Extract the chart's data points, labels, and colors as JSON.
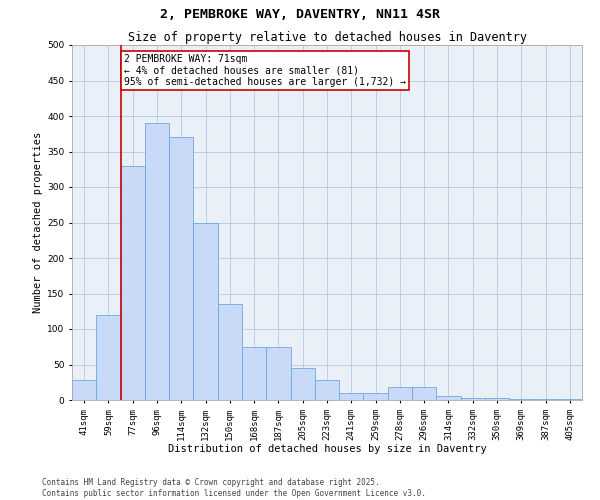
{
  "title": "2, PEMBROKE WAY, DAVENTRY, NN11 4SR",
  "subtitle": "Size of property relative to detached houses in Daventry",
  "xlabel": "Distribution of detached houses by size in Daventry",
  "ylabel": "Number of detached properties",
  "footer_line1": "Contains HM Land Registry data © Crown copyright and database right 2025.",
  "footer_line2": "Contains public sector information licensed under the Open Government Licence v3.0.",
  "annotation_line1": "2 PEMBROKE WAY: 71sqm",
  "annotation_line2": "← 4% of detached houses are smaller (81)",
  "annotation_line3": "95% of semi-detached houses are larger (1,732) →",
  "bar_color": "#c9daf8",
  "bar_edge_color": "#6fa8dc",
  "grid_color": "#b8c7e0",
  "bg_color": "#eaf0f8",
  "vline_color": "#cc0000",
  "annotation_box_edge": "#cc0000",
  "categories": [
    "41sqm",
    "59sqm",
    "77sqm",
    "96sqm",
    "114sqm",
    "132sqm",
    "150sqm",
    "168sqm",
    "187sqm",
    "205sqm",
    "223sqm",
    "241sqm",
    "259sqm",
    "278sqm",
    "296sqm",
    "314sqm",
    "332sqm",
    "350sqm",
    "369sqm",
    "387sqm",
    "405sqm"
  ],
  "values": [
    28,
    120,
    330,
    390,
    370,
    250,
    135,
    75,
    75,
    45,
    28,
    10,
    10,
    18,
    18,
    5,
    3,
    3,
    1,
    1,
    1
  ],
  "ylim": [
    0,
    500
  ],
  "yticks": [
    0,
    50,
    100,
    150,
    200,
    250,
    300,
    350,
    400,
    450,
    500
  ],
  "vline_x": 1.5,
  "title_fontsize": 9.5,
  "subtitle_fontsize": 8.5,
  "axis_label_fontsize": 7.5,
  "tick_fontsize": 6.5,
  "annotation_fontsize": 7,
  "footer_fontsize": 5.5
}
